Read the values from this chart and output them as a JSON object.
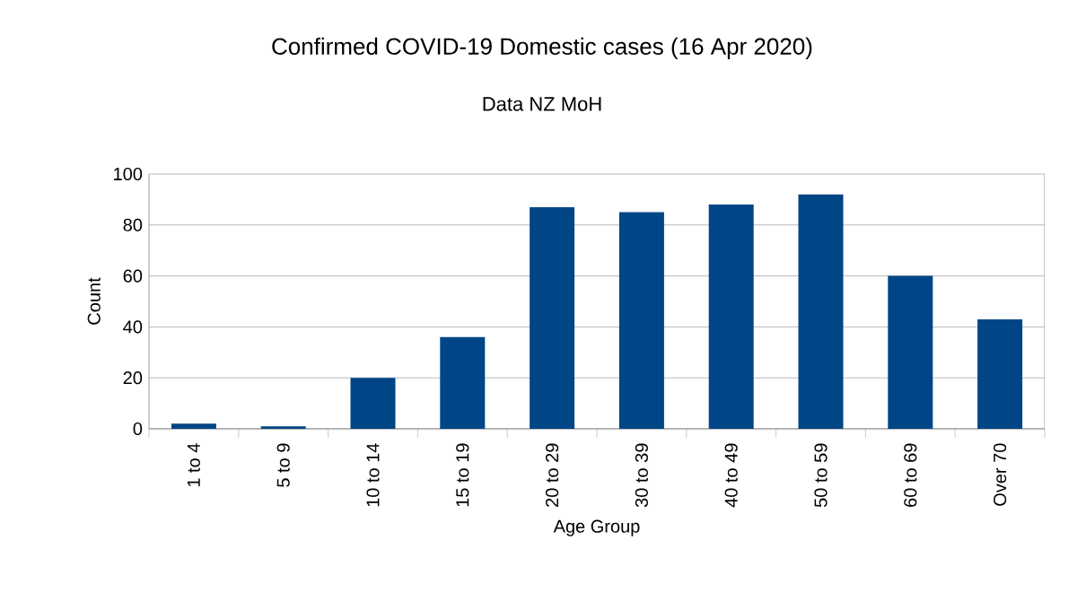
{
  "chart_data": {
    "type": "bar",
    "title": "Confirmed COVID-19 Domestic cases (16 Apr 2020)",
    "subtitle": "Data NZ MoH",
    "xlabel": "Age Group",
    "ylabel": "Count",
    "categories": [
      "1 to 4",
      "5 to 9",
      "10 to 14",
      "15 to 19",
      "20 to 29",
      "30 to 39",
      "40 to 49",
      "50 to 59",
      "60 to 69",
      "Over 70"
    ],
    "values": [
      2,
      1,
      20,
      36,
      87,
      85,
      88,
      92,
      60,
      43
    ],
    "color": "#004586",
    "ylim": [
      0,
      100
    ],
    "yticks": [
      0,
      20,
      40,
      60,
      80,
      100
    ],
    "grid": "y"
  }
}
